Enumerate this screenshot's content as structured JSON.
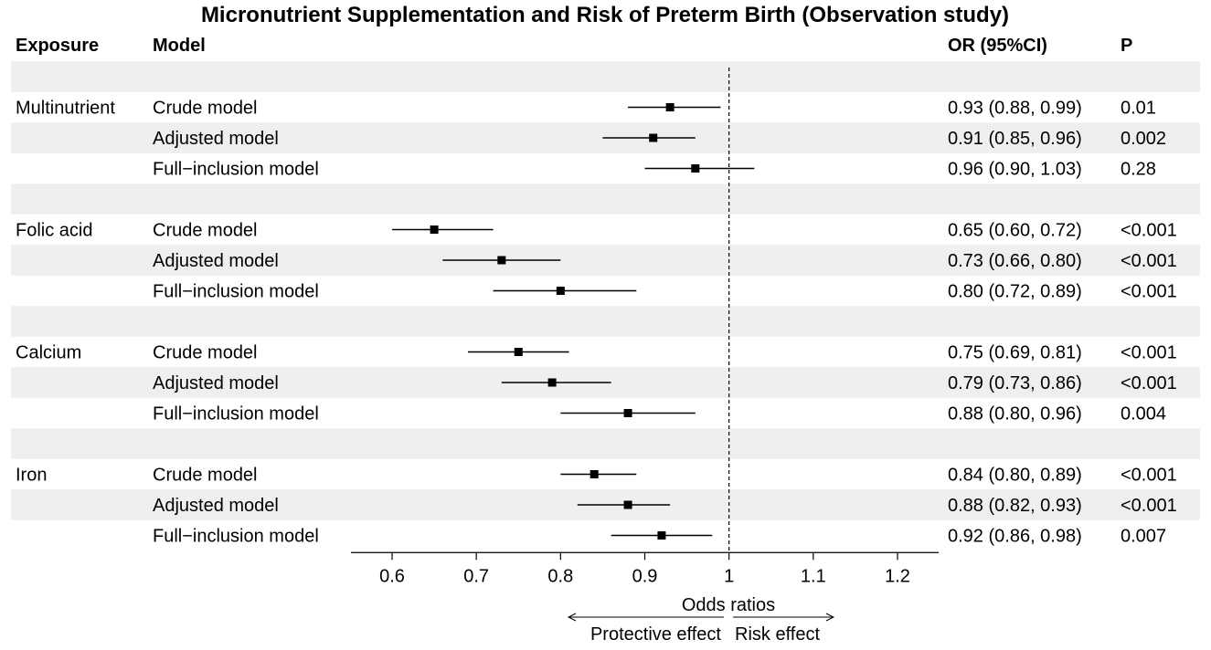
{
  "chart_data": {
    "type": "forest",
    "title": "Micronutrient Supplementation and Risk of Preterm Birth (Observation study)",
    "columns": {
      "exposure": "Exposure",
      "model": "Model",
      "or_ci": "OR (95%CI)",
      "p": "P"
    },
    "xlabel": "Odds ratios",
    "xlim": [
      0.55,
      1.25
    ],
    "xticks": [
      0.6,
      0.7,
      0.8,
      0.9,
      1,
      1.1,
      1.2
    ],
    "xtick_labels": [
      "0.6",
      "0.7",
      "0.8",
      "0.9",
      "1",
      "1.1",
      "1.2"
    ],
    "reference_line": 1,
    "direction_labels": {
      "left": "Protective effect",
      "right": "Risk effect"
    },
    "groups": [
      {
        "exposure": "Multinutrient",
        "rows": [
          {
            "model": "Crude model",
            "or": 0.93,
            "lower": 0.88,
            "upper": 0.99,
            "or_ci_text": "0.93 (0.88, 0.99)",
            "p": "0.01"
          },
          {
            "model": "Adjusted model",
            "or": 0.91,
            "lower": 0.85,
            "upper": 0.96,
            "or_ci_text": "0.91 (0.85, 0.96)",
            "p": "0.002"
          },
          {
            "model": "Full−inclusion model",
            "or": 0.96,
            "lower": 0.9,
            "upper": 1.03,
            "or_ci_text": "0.96 (0.90, 1.03)",
            "p": "0.28"
          }
        ]
      },
      {
        "exposure": "Folic acid",
        "rows": [
          {
            "model": "Crude model",
            "or": 0.65,
            "lower": 0.6,
            "upper": 0.72,
            "or_ci_text": "0.65 (0.60, 0.72)",
            "p": "<0.001"
          },
          {
            "model": "Adjusted model",
            "or": 0.73,
            "lower": 0.66,
            "upper": 0.8,
            "or_ci_text": "0.73 (0.66, 0.80)",
            "p": "<0.001"
          },
          {
            "model": "Full−inclusion model",
            "or": 0.8,
            "lower": 0.72,
            "upper": 0.89,
            "or_ci_text": "0.80 (0.72, 0.89)",
            "p": "<0.001"
          }
        ]
      },
      {
        "exposure": "Calcium",
        "rows": [
          {
            "model": "Crude model",
            "or": 0.75,
            "lower": 0.69,
            "upper": 0.81,
            "or_ci_text": "0.75 (0.69, 0.81)",
            "p": "<0.001"
          },
          {
            "model": "Adjusted model",
            "or": 0.79,
            "lower": 0.73,
            "upper": 0.86,
            "or_ci_text": "0.79 (0.73, 0.86)",
            "p": "<0.001"
          },
          {
            "model": "Full−inclusion model",
            "or": 0.88,
            "lower": 0.8,
            "upper": 0.96,
            "or_ci_text": "0.88 (0.80, 0.96)",
            "p": "0.004"
          }
        ]
      },
      {
        "exposure": "Iron",
        "rows": [
          {
            "model": "Crude model",
            "or": 0.84,
            "lower": 0.8,
            "upper": 0.89,
            "or_ci_text": "0.84 (0.80, 0.89)",
            "p": "<0.001"
          },
          {
            "model": "Adjusted model",
            "or": 0.88,
            "lower": 0.82,
            "upper": 0.93,
            "or_ci_text": "0.88 (0.82, 0.93)",
            "p": "<0.001"
          },
          {
            "model": "Full−inclusion model",
            "or": 0.92,
            "lower": 0.86,
            "upper": 0.98,
            "or_ci_text": "0.92 (0.86, 0.98)",
            "p": "0.007"
          }
        ]
      }
    ],
    "colors": {
      "stripe": "#efefef",
      "ink": "#000000",
      "background": "#ffffff"
    }
  }
}
